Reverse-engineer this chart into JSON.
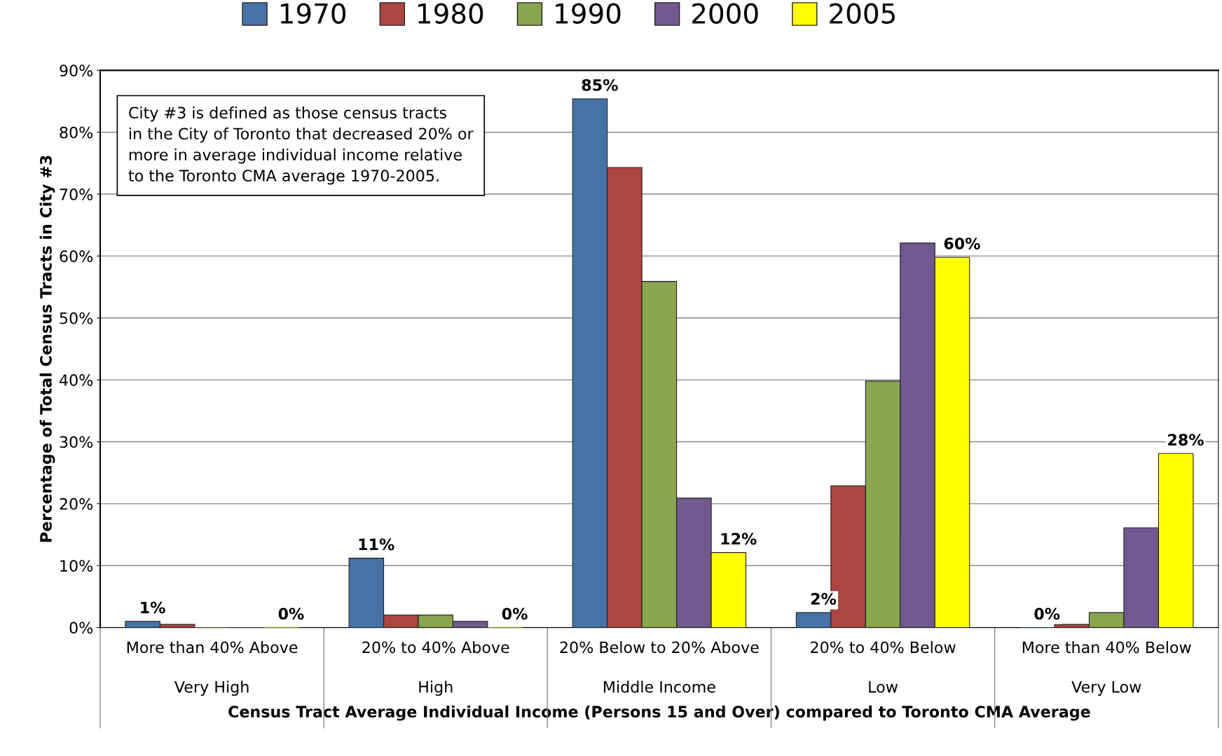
{
  "chart_data": {
    "type": "bar",
    "xlabel": "Census Tract Average Individual Income (Persons 15 and Over) compared to Toronto CMA Average",
    "ylabel": "Percentage of Total Census Tracts in City #3",
    "categories": [
      "More than 40% Above\n\nVery High",
      "20% to 40% Above\n\nHigh",
      "20% Below to 20% Above\n\nMiddle Income",
      "20% to 40% Below\n\nLow",
      "More than 40% Below\n\nVery Low"
    ],
    "series": [
      {
        "name": "1970",
        "color": "#4572a7",
        "values": [
          1,
          11.2,
          85.4,
          2.4,
          0
        ],
        "value_labels": [
          "1%",
          "11%",
          "85%",
          "2%",
          "0%"
        ]
      },
      {
        "name": "1980",
        "color": "#aa4643",
        "values": [
          0.5,
          2,
          74.3,
          22.9,
          0.5
        ]
      },
      {
        "name": "1990",
        "color": "#89a54e",
        "values": [
          0,
          2,
          55.9,
          39.8,
          2.4
        ]
      },
      {
        "name": "2000",
        "color": "#71588f",
        "values": [
          0,
          1,
          20.9,
          62.1,
          16.1
        ]
      },
      {
        "name": "2005",
        "color": "#ffff00",
        "values": [
          0,
          0,
          12.1,
          59.8,
          28.1
        ],
        "value_labels": [
          "0%",
          "0%",
          "12%",
          "60%",
          "28%"
        ]
      }
    ],
    "ylim": [
      0,
      90
    ],
    "yticks": [
      {
        "value": 0,
        "label": "0%"
      },
      {
        "value": 10,
        "label": "10%"
      },
      {
        "value": 20,
        "label": "20%"
      },
      {
        "value": 30,
        "label": "30%"
      },
      {
        "value": 40,
        "label": "40%"
      },
      {
        "value": 50,
        "label": "50%"
      },
      {
        "value": 60,
        "label": "60%"
      },
      {
        "value": 70,
        "label": "70%"
      },
      {
        "value": 80,
        "label": "80%"
      },
      {
        "value": 90,
        "label": "90%"
      }
    ],
    "annotations": [
      "City #3 is defined as those census tracts\nin the City of Toronto that decreased 20% or\nmore in average individual income relative\nto the Toronto CMA average 1970-2005."
    ],
    "grid": "y",
    "legend": "top"
  }
}
